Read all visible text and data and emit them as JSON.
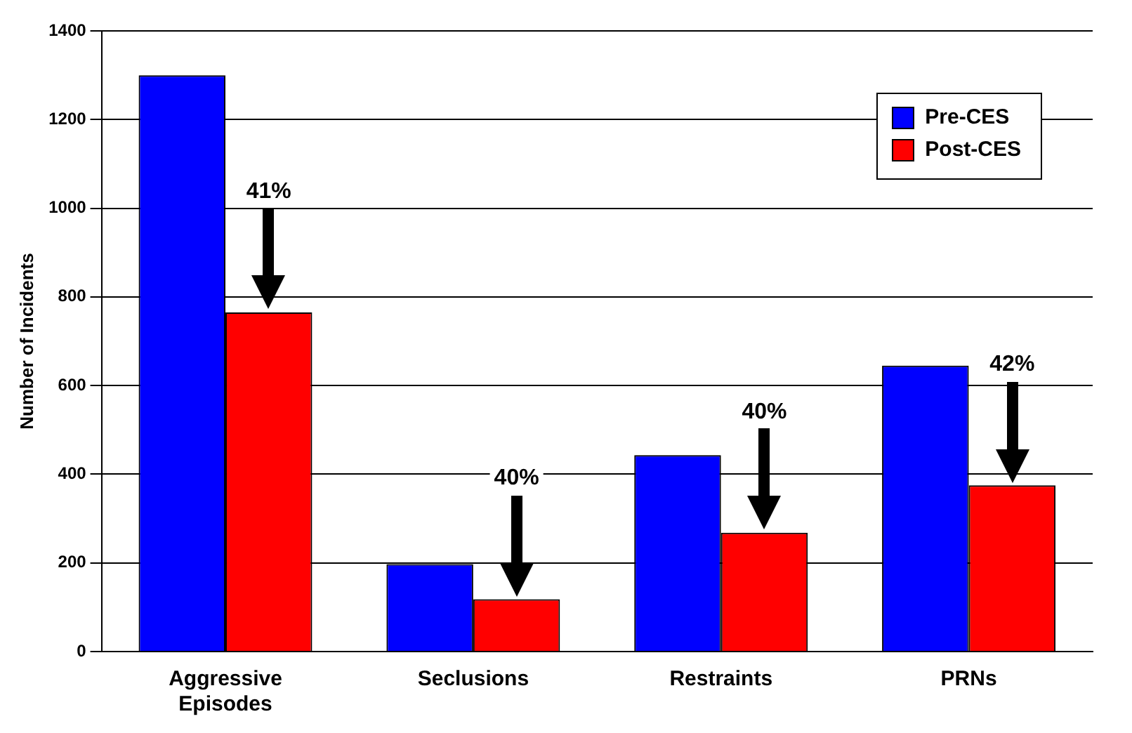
{
  "chart_data": {
    "type": "bar",
    "ylabel": "Number of Incidents",
    "categories": [
      "Aggressive Episodes",
      "Seclusions",
      "Restraints",
      "PRNs"
    ],
    "series": [
      {
        "name": "Pre-CES",
        "color": "#0000ff",
        "values": [
          1300,
          197,
          443,
          645
        ]
      },
      {
        "name": "Post-CES",
        "color": "#ff0000",
        "values": [
          765,
          118,
          268,
          375
        ]
      }
    ],
    "ylim": [
      0,
      1400
    ],
    "yticks": [
      0,
      200,
      400,
      600,
      800,
      1000,
      1200,
      1400
    ],
    "grid": "y",
    "legend": "top right",
    "annotations": [
      "41%",
      "40%",
      "40%",
      "42%"
    ]
  }
}
